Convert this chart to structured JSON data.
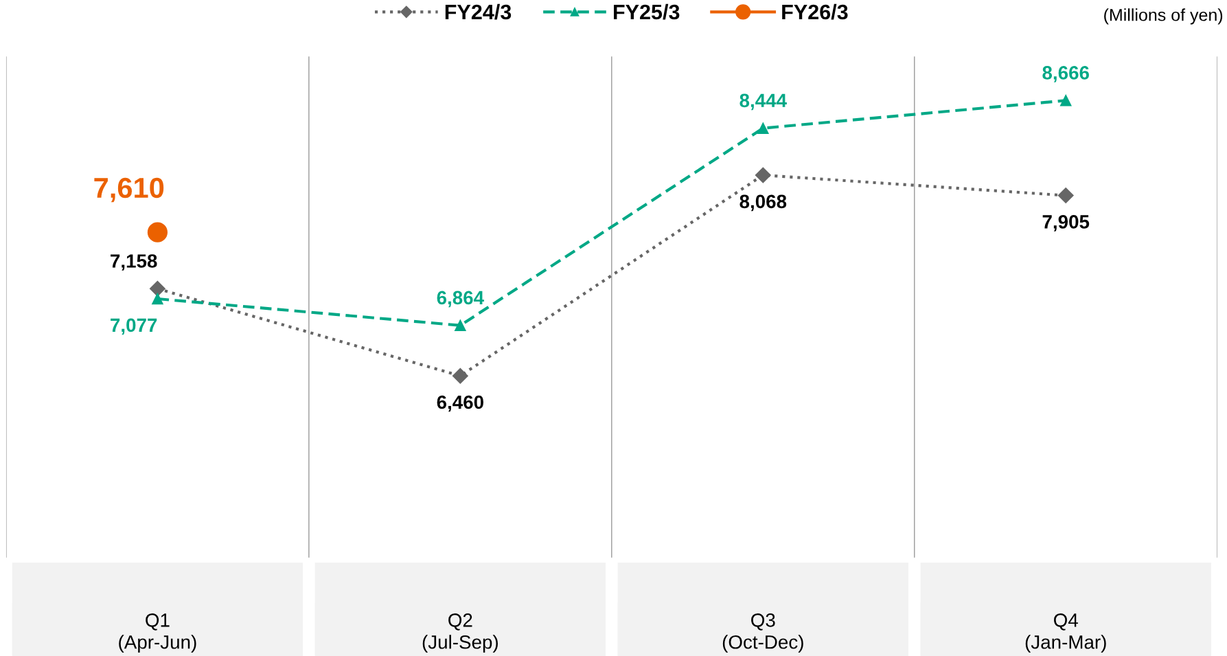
{
  "chart_data": {
    "type": "line",
    "categories": [
      "Q1\n(Apr-Jun)",
      "Q2\n(Jul-Sep)",
      "Q3\n(Oct-Dec)",
      "Q4\n(Jan-Mar)"
    ],
    "series": [
      {
        "name": "FY24/3",
        "color": "#666666",
        "values": [
          7158,
          6460,
          8068,
          7905
        ],
        "value_labels": [
          "7,158",
          "6,460",
          "8,068",
          "7,905"
        ],
        "marker": "diamond",
        "line_style": "dotted"
      },
      {
        "name": "FY25/3",
        "color": "#00a886",
        "values": [
          7077,
          6864,
          8444,
          8666
        ],
        "value_labels": [
          "7,077",
          "6,864",
          "8,444",
          "8,666"
        ],
        "marker": "triangle",
        "line_style": "dashed"
      },
      {
        "name": "FY26/3",
        "color": "#eb6100",
        "values": [
          7610,
          null,
          null,
          null
        ],
        "value_labels": [
          "7,610",
          null,
          null,
          null
        ],
        "marker": "circle",
        "line_style": "solid"
      }
    ],
    "legend": "top",
    "grid": "x",
    "tick_labels": "x",
    "annotations": [
      "(Millions of yen)"
    ]
  }
}
